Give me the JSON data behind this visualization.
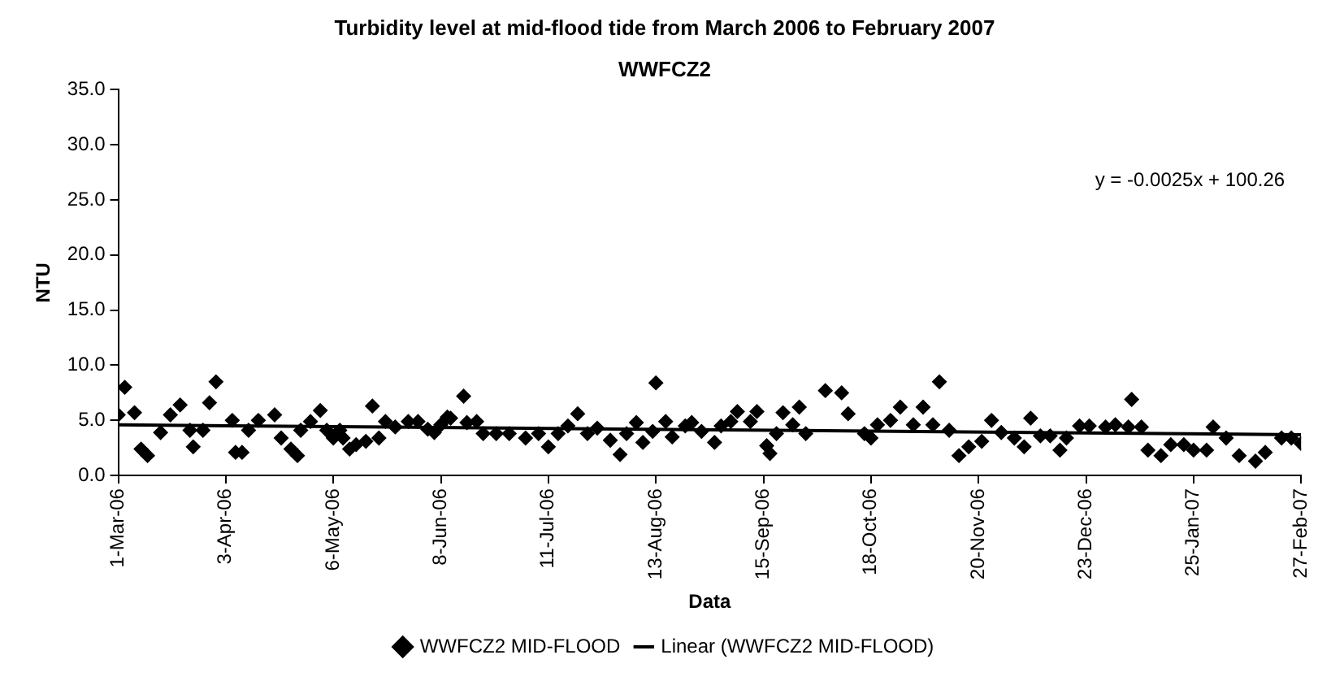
{
  "chart_data": {
    "type": "scatter",
    "title": "Turbidity level at mid-flood tide from March 2006 to February 2007",
    "subtitle": "WWFCZ2",
    "xlabel": "Data",
    "ylabel": "NTU",
    "annotations": [
      "y = -0.0025x + 100.26"
    ],
    "xlim": [
      "2006-03-01",
      "2007-02-27"
    ],
    "xticks": [
      {
        "value": "2006-03-01",
        "label": "1-Mar-06"
      },
      {
        "value": "2006-04-03",
        "label": "3-Apr-06"
      },
      {
        "value": "2006-05-06",
        "label": "6-May-06"
      },
      {
        "value": "2006-06-08",
        "label": "8-Jun-06"
      },
      {
        "value": "2006-07-11",
        "label": "11-Jul-06"
      },
      {
        "value": "2006-08-13",
        "label": "13-Aug-06"
      },
      {
        "value": "2006-09-15",
        "label": "15-Sep-06"
      },
      {
        "value": "2006-10-18",
        "label": "18-Oct-06"
      },
      {
        "value": "2006-11-20",
        "label": "20-Nov-06"
      },
      {
        "value": "2006-12-23",
        "label": "23-Dec-06"
      },
      {
        "value": "2007-01-25",
        "label": "25-Jan-07"
      },
      {
        "value": "2007-02-27",
        "label": "27-Feb-07"
      }
    ],
    "ylim": [
      0,
      35
    ],
    "yticks": [
      {
        "value": 0,
        "label": "0.0"
      },
      {
        "value": 5,
        "label": "5.0"
      },
      {
        "value": 10,
        "label": "10.0"
      },
      {
        "value": 15,
        "label": "15.0"
      },
      {
        "value": 20,
        "label": "20.0"
      },
      {
        "value": 25,
        "label": "25.0"
      },
      {
        "value": 30,
        "label": "30.0"
      },
      {
        "value": 35,
        "label": "35.0"
      }
    ],
    "grid": false,
    "legend": "bottom",
    "series": [
      {
        "name": "WWFCZ2 MID-FLOOD",
        "type": "scatter",
        "marker": "diamond",
        "color": "#000000",
        "x": [
          "2006-03-01",
          "2006-03-03",
          "2006-03-06",
          "2006-03-08",
          "2006-03-10",
          "2006-03-14",
          "2006-03-17",
          "2006-03-20",
          "2006-03-23",
          "2006-03-24",
          "2006-03-27",
          "2006-03-29",
          "2006-03-31",
          "2006-04-05",
          "2006-04-06",
          "2006-04-08",
          "2006-04-10",
          "2006-04-13",
          "2006-04-18",
          "2006-04-20",
          "2006-04-23",
          "2006-04-25",
          "2006-04-26",
          "2006-04-29",
          "2006-05-02",
          "2006-05-04",
          "2006-05-06",
          "2006-05-08",
          "2006-05-09",
          "2006-05-11",
          "2006-05-13",
          "2006-05-16",
          "2006-05-18",
          "2006-05-20",
          "2006-05-22",
          "2006-05-25",
          "2006-05-29",
          "2006-06-01",
          "2006-06-04",
          "2006-06-06",
          "2006-06-08",
          "2006-06-10",
          "2006-06-11",
          "2006-06-15",
          "2006-06-16",
          "2006-06-19",
          "2006-06-21",
          "2006-06-25",
          "2006-06-29",
          "2006-07-04",
          "2006-07-08",
          "2006-07-11",
          "2006-07-14",
          "2006-07-17",
          "2006-07-20",
          "2006-07-23",
          "2006-07-26",
          "2006-07-30",
          "2006-08-02",
          "2006-08-04",
          "2006-08-07",
          "2006-08-09",
          "2006-08-12",
          "2006-08-13",
          "2006-08-16",
          "2006-08-18",
          "2006-08-22",
          "2006-08-24",
          "2006-08-27",
          "2006-08-31",
          "2006-09-02",
          "2006-09-05",
          "2006-09-07",
          "2006-09-11",
          "2006-09-13",
          "2006-09-16",
          "2006-09-17",
          "2006-09-19",
          "2006-09-21",
          "2006-09-24",
          "2006-09-26",
          "2006-09-28",
          "2006-10-04",
          "2006-10-09",
          "2006-10-11",
          "2006-10-16",
          "2006-10-18",
          "2006-10-20",
          "2006-10-24",
          "2006-10-27",
          "2006-10-31",
          "2006-11-03",
          "2006-11-06",
          "2006-11-08",
          "2006-11-11",
          "2006-11-14",
          "2006-11-17",
          "2006-11-21",
          "2006-11-24",
          "2006-11-27",
          "2006-12-01",
          "2006-12-04",
          "2006-12-06",
          "2006-12-09",
          "2006-12-12",
          "2006-12-15",
          "2006-12-17",
          "2006-12-21",
          "2006-12-24",
          "2006-12-29",
          "2007-01-01",
          "2007-01-05",
          "2007-01-06",
          "2007-01-09",
          "2007-01-11",
          "2007-01-15",
          "2007-01-18",
          "2007-01-22",
          "2007-01-25",
          "2007-01-29",
          "2007-01-31",
          "2007-02-04",
          "2007-02-08",
          "2007-02-13",
          "2007-02-16",
          "2007-02-21",
          "2007-02-24",
          "2007-02-27"
        ],
        "values": [
          5.5,
          8.0,
          5.7,
          2.4,
          1.8,
          3.9,
          5.5,
          6.4,
          4.1,
          2.6,
          4.1,
          6.6,
          8.5,
          5.0,
          2.1,
          2.1,
          4.1,
          5.0,
          5.5,
          3.4,
          2.4,
          1.8,
          4.1,
          4.9,
          5.9,
          4.1,
          3.4,
          4.1,
          3.4,
          2.4,
          2.8,
          3.1,
          6.3,
          3.4,
          4.9,
          4.4,
          4.9,
          4.9,
          4.2,
          3.9,
          4.6,
          5.3,
          5.2,
          7.2,
          4.8,
          4.9,
          3.8,
          3.8,
          3.8,
          3.4,
          3.8,
          2.6,
          3.8,
          4.5,
          5.6,
          3.8,
          4.3,
          3.2,
          1.9,
          3.8,
          4.8,
          3.0,
          4.0,
          8.4,
          4.9,
          3.5,
          4.5,
          4.8,
          4.0,
          3.0,
          4.5,
          4.9,
          5.8,
          4.9,
          5.8,
          2.7,
          2.0,
          3.8,
          5.7,
          4.6,
          6.2,
          3.8,
          7.7,
          7.5,
          5.6,
          3.8,
          3.4,
          4.6,
          5.0,
          6.2,
          4.6,
          6.2,
          4.6,
          8.5,
          4.1,
          1.8,
          2.6,
          3.1,
          5.0,
          3.9,
          3.4,
          2.6,
          5.2,
          3.6,
          3.6,
          2.3,
          3.4,
          4.5,
          4.5,
          4.4,
          4.6,
          4.4,
          6.9,
          4.4,
          2.3,
          1.8,
          2.8,
          2.8,
          2.3,
          2.3,
          4.4,
          3.4,
          1.8,
          1.3,
          2.1,
          3.4,
          3.4,
          2.9
        ]
      },
      {
        "name": "Linear (WWFCZ2 MID-FLOOD)",
        "type": "line",
        "marker": "none",
        "line_style": "solid",
        "color": "#000000",
        "x": [
          "2006-03-01",
          "2007-02-27"
        ],
        "values": [
          4.6,
          3.7
        ]
      }
    ]
  }
}
